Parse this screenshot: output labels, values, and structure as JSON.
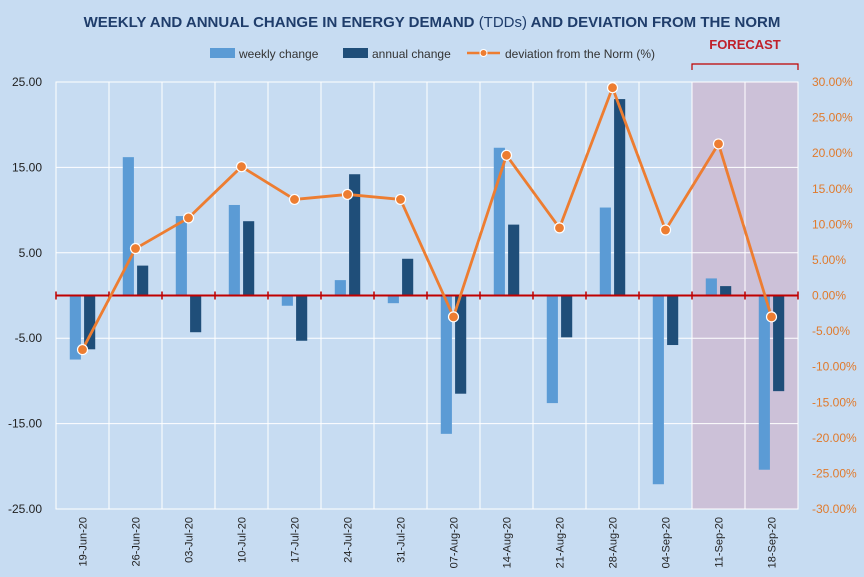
{
  "chart_data": {
    "type": "bar+line",
    "title_parts": [
      "WEEKLY  AND ANNUAL CHANGE IN ENERGY DEMAND ",
      "(TDDs)",
      " AND DEVIATION FROM THE NORM"
    ],
    "categories": [
      "19-Jun-20",
      "26-Jun-20",
      "03-Jul-20",
      "10-Jul-20",
      "17-Jul-20",
      "24-Jul-20",
      "31-Jul-20",
      "07-Aug-20",
      "14-Aug-20",
      "21-Aug-20",
      "28-Aug-20",
      "04-Sep-20",
      "11-Sep-20",
      "18-Sep-20"
    ],
    "series": [
      {
        "name": "weekly change",
        "axis": "left",
        "kind": "bar",
        "color": "#5b9bd5",
        "values": [
          -7.5,
          16.2,
          9.3,
          10.6,
          -1.2,
          1.8,
          -0.9,
          -16.2,
          17.3,
          -12.6,
          10.3,
          -22.1,
          2.0,
          -20.4
        ]
      },
      {
        "name": "annual change",
        "axis": "left",
        "kind": "bar",
        "color": "#1f4e79",
        "values": [
          -6.3,
          3.5,
          -4.3,
          8.7,
          -5.3,
          14.2,
          4.3,
          -11.5,
          8.3,
          -4.9,
          23.0,
          -5.8,
          1.1,
          -11.2
        ]
      },
      {
        "name": "deviation from the Norm (%)",
        "axis": "right",
        "kind": "line",
        "color": "#ed7d31",
        "values": [
          -7.6,
          6.6,
          10.9,
          18.1,
          13.5,
          14.2,
          13.5,
          -3.0,
          19.7,
          9.5,
          29.2,
          9.2,
          21.3,
          -3.0
        ]
      }
    ],
    "left_axis": {
      "min": -25,
      "max": 25,
      "ticks": [
        "25.00",
        "15.00",
        "5.00",
        "-5.00",
        "-15.00",
        "-25.00"
      ],
      "tick_values": [
        25,
        15,
        5,
        -5,
        -15,
        -25
      ]
    },
    "right_axis": {
      "min": -30,
      "max": 30,
      "ticks": [
        "30.00%",
        "25.00%",
        "20.00%",
        "15.00%",
        "10.00%",
        "5.00%",
        "0.00%",
        "-5.00%",
        "-10.00%",
        "-15.00%",
        "-20.00%",
        "-25.00%",
        "-30.00%"
      ],
      "tick_values": [
        30,
        25,
        20,
        15,
        10,
        5,
        0,
        -5,
        -10,
        -15,
        -20,
        -25,
        -30
      ]
    },
    "forecast_label": "FORECAST",
    "forecast_categories": [
      "11-Sep-20",
      "18-Sep-20"
    ],
    "legend_position": "top",
    "grid": true
  },
  "colors": {
    "background": "#c7dcf2",
    "gridline": "#ffffff",
    "zero_line": "#c00000",
    "forecast_shade": "#cdb8cf",
    "title": "#1f3d6b"
  }
}
